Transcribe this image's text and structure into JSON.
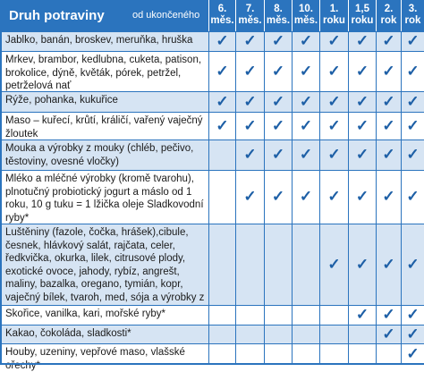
{
  "header": {
    "title": "Druh potraviny",
    "subtitle": "od ukončeného",
    "columns": [
      [
        "6.",
        "měs."
      ],
      [
        "7.",
        "měs."
      ],
      [
        "8.",
        "měs."
      ],
      [
        "10.",
        "měs."
      ],
      [
        "1.",
        "roku"
      ],
      [
        "1,5",
        "roku"
      ],
      [
        "2.",
        "rok"
      ],
      [
        "3.",
        "rok"
      ]
    ]
  },
  "check_symbol": "✓",
  "rows": [
    {
      "label": "Jablko, banán, broskev, meruňka, hruška",
      "from": 0
    },
    {
      "label": "Mrkev, brambor, kedlubna, cuketa, patison, brokolice, dýně, květák, pórek, petržel, petrželová nať",
      "from": 0
    },
    {
      "label": "Rýže, pohanka, kukuřice",
      "from": 0
    },
    {
      "label": "Maso – kuřecí, krůtí, králičí, vařený vaječný žloutek",
      "from": 0
    },
    {
      "label": "Mouka a výrobky z mouky (chléb, pečivo, těstoviny, ovesné vločky)",
      "from": 1
    },
    {
      "label": "Mléko a mléčné výrobky (kromě tvarohu), plnotučný probiotický jogurt a máslo od 1 roku, 10 g tuku = 1 lžička oleje Sladkovodní ryby*",
      "from": 1
    },
    {
      "label": "Luštěniny (fazole, čočka, hrášek),cibule, česnek, hlávkový salát, rajčata, celer, ředkvička, okurka, lilek, citrusové plody, exotické ovoce, jahody, rybíz, angrešt, maliny, bazalka, oregano, tymián, kopr, vaječný bílek, tvaroh, med, sója a výrobky z ní",
      "from": 4
    },
    {
      "label": "Skořice, vanilka, kari, mořské ryby*",
      "from": 5
    },
    {
      "label": "Kakao, čokoláda, sladkosti*",
      "from": 6
    },
    {
      "label": "Houby, uzeniny, vepřové maso, vlašské ořechy*",
      "from": 7
    }
  ]
}
